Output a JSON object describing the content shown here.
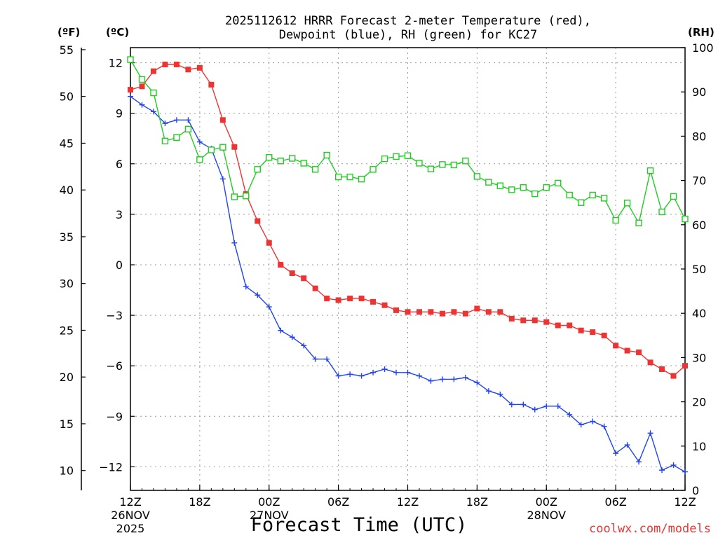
{
  "chart_data": {
    "type": "line",
    "title_line1": "2025112612 HRRR Forecast 2-meter Temperature (red),",
    "title_line2": "Dewpoint (blue), RH (green) for KC27",
    "xlabel": "Forecast Time (UTC)",
    "credit": "coolwx.com/models",
    "unit_f": "(ºF)",
    "unit_c": "(ºC)",
    "unit_rh": "(RH)",
    "forecast_hours": [
      0,
      48
    ],
    "temp_c_range": [
      -13.4,
      12.9
    ],
    "rh_range": [
      0,
      100
    ],
    "x_ticks": [
      {
        "hour": 0,
        "label": "12Z",
        "date": "26NOV",
        "year": "2025"
      },
      {
        "hour": 6,
        "label": "18Z"
      },
      {
        "hour": 12,
        "label": "00Z",
        "date": "27NOV"
      },
      {
        "hour": 18,
        "label": "06Z"
      },
      {
        "hour": 24,
        "label": "12Z"
      },
      {
        "hour": 30,
        "label": "18Z"
      },
      {
        "hour": 36,
        "label": "00Z",
        "date": "28NOV"
      },
      {
        "hour": 42,
        "label": "06Z"
      },
      {
        "hour": 48,
        "label": "12Z"
      }
    ],
    "f_ticks": [
      "55",
      "50",
      "45",
      "40",
      "35",
      "30",
      "25",
      "20",
      "15",
      "10"
    ],
    "c_ticks": [
      "12",
      "9",
      "6",
      "3",
      "0",
      "−3",
      "−6",
      "−9",
      "−12"
    ],
    "rh_ticks": [
      "100",
      "90",
      "80",
      "70",
      "60",
      "50",
      "40",
      "30",
      "20",
      "10",
      "0"
    ],
    "series": [
      {
        "name": "2-meter Temperature",
        "unit": "C",
        "color": "#ee3333",
        "marker": "filled-square",
        "values": [
          10.4,
          10.6,
          11.5,
          11.9,
          11.9,
          11.6,
          11.7,
          10.7,
          8.6,
          7.0,
          4.2,
          2.6,
          1.3,
          0.0,
          -0.5,
          -0.8,
          -1.4,
          -2.0,
          -2.1,
          -2.0,
          -2.0,
          -2.2,
          -2.4,
          -2.7,
          -2.8,
          -2.8,
          -2.8,
          -2.9,
          -2.8,
          -2.9,
          -2.6,
          -2.8,
          -2.8,
          -3.2,
          -3.3,
          -3.3,
          -3.4,
          -3.6,
          -3.6,
          -3.9,
          -4.0,
          -4.2,
          -4.8,
          -5.1,
          -5.2,
          -5.8,
          -6.2,
          -6.6,
          -6.0
        ]
      },
      {
        "name": "Dewpoint",
        "unit": "C",
        "color": "#2244ee",
        "marker": "plus",
        "values": [
          10.0,
          9.5,
          9.1,
          8.4,
          8.6,
          8.6,
          7.3,
          6.9,
          5.1,
          1.3,
          -1.3,
          -1.8,
          -2.5,
          -3.9,
          -4.3,
          -4.8,
          -5.6,
          -5.6,
          -6.6,
          -6.5,
          -6.6,
          -6.4,
          -6.2,
          -6.4,
          -6.4,
          -6.6,
          -6.9,
          -6.8,
          -6.8,
          -6.7,
          -7.0,
          -7.5,
          -7.7,
          -8.3,
          -8.3,
          -8.6,
          -8.4,
          -8.4,
          -8.9,
          -9.5,
          -9.3,
          -9.6,
          -11.2,
          -10.7,
          -11.7,
          -10.0,
          -12.2,
          -11.9,
          -12.3
        ]
      },
      {
        "name": "RH",
        "unit": "%",
        "color": "#22cc22",
        "marker": "open-square",
        "values": [
          97.3,
          92.8,
          89.8,
          78.9,
          79.7,
          81.6,
          74.7,
          76.9,
          77.5,
          66.3,
          66.5,
          72.5,
          75.2,
          74.4,
          75.0,
          73.9,
          72.5,
          75.7,
          70.8,
          70.8,
          70.3,
          72.5,
          74.9,
          75.4,
          75.6,
          73.9,
          72.6,
          73.6,
          73.5,
          74.4,
          70.9,
          69.6,
          68.8,
          67.9,
          68.4,
          67.0,
          68.4,
          69.4,
          66.7,
          65.0,
          66.7,
          66.0,
          61.0,
          64.9,
          60.4,
          72.2,
          62.9,
          66.4,
          61.3
        ]
      }
    ]
  }
}
